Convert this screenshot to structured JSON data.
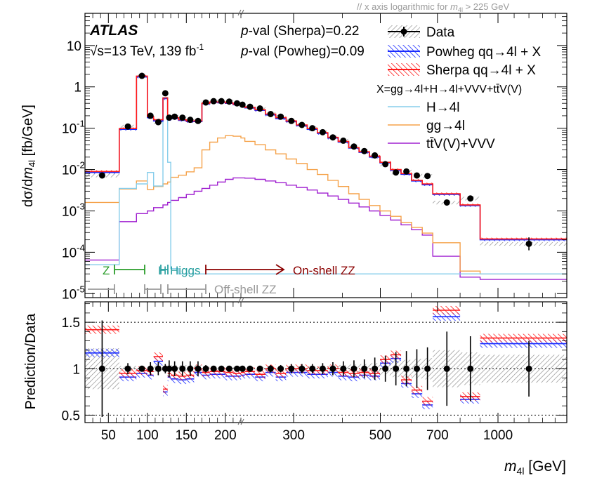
{
  "header_note": "x axis logarithmic for",
  "header_note_var": "m",
  "header_note_sub": "4l",
  "header_note_tail": "> 225 GeV",
  "atlas": {
    "label": "ATLAS",
    "energy_prefix": "√s=13 TeV, 139 fb",
    "energy_sup": "-1"
  },
  "pvals": {
    "sherpa_p": "p",
    "sherpa": "-val (Sherpa)=0.22",
    "powheg_p": "p",
    "powheg": "-val (Powheg)=0.09"
  },
  "legend": {
    "data": "Data",
    "powheg": "Powheg qq→4l + X",
    "sherpa": "Sherpa qq→4l + X",
    "x_def": "X=gg→4l+H→4l+VVV+tt̄V(V)",
    "h4l": "H→4l",
    "gg4l": "gg→4l",
    "ttv": "tt̄V(V)+VVV"
  },
  "regions": {
    "z": "Z",
    "h": "H",
    "higgs": "Higgs",
    "onshell": "On-shell ZZ",
    "offshell": "Off-shell ZZ"
  },
  "colors": {
    "data": "#000000",
    "powheg": "#1a2bff",
    "sherpa": "#ff1a1a",
    "h4l": "#87ceeb",
    "gg4l": "#f5a24a",
    "ttv": "#a020d0",
    "z_marker": "#2a9d2a",
    "h_marker": "#2aa0a0",
    "onshell": "#8b0000",
    "offshell": "#999999"
  },
  "chart_data": [
    {
      "type": "line",
      "panel": "upper",
      "xlabel_var": "m",
      "xlabel_sub": "4l",
      "xlabel_unit": "[GeV]",
      "ylabel_prefix": "dσ/d",
      "ylabel_var": "m",
      "ylabel_sub": "4l",
      "ylabel_unit": "[fb/GeV]",
      "y_scale": "log",
      "ylim": [
        8e-06,
        60
      ],
      "x_scale": "linear below 225 GeV, logarithmic above",
      "x_tick_labels": [
        "50",
        "100",
        "150",
        "200",
        "300",
        "500",
        "700",
        "1000"
      ],
      "y_tick_labels": [
        {
          "base": "10",
          "exp": "-5"
        },
        {
          "base": "10",
          "exp": "-4"
        },
        {
          "base": "10",
          "exp": "-3"
        },
        {
          "base": "10",
          "exp": "-2"
        },
        {
          "base": "10",
          "exp": "-1"
        },
        {
          "base": "1",
          "exp": ""
        },
        {
          "base": "10",
          "exp": ""
        }
      ],
      "bin_edges": [
        20,
        64,
        86,
        100,
        108,
        120,
        126,
        130,
        140,
        150,
        160,
        170,
        180,
        190,
        200,
        210,
        220,
        225,
        239,
        254,
        270,
        287,
        305,
        325,
        345,
        367,
        390,
        415,
        441,
        469,
        499,
        531,
        565,
        601,
        640,
        681,
        800,
        900,
        1500
      ],
      "series": [
        {
          "name": "Data",
          "style": "points",
          "x": [
            42,
            75,
            93,
            104,
            114,
            123,
            128,
            135,
            145,
            155,
            165,
            175,
            185,
            195,
            205,
            215,
            222,
            232,
            246,
            262,
            278,
            296,
            315,
            335,
            356,
            378,
            402,
            428,
            455,
            484,
            515,
            548,
            583,
            620,
            660,
            740,
            850,
            1200
          ],
          "y": [
            0.0072,
            0.11,
            1.85,
            0.2,
            0.14,
            0.7,
            0.18,
            0.19,
            0.18,
            0.16,
            0.15,
            0.42,
            0.45,
            0.45,
            0.44,
            0.4,
            0.37,
            0.33,
            0.3,
            0.22,
            0.19,
            0.15,
            0.12,
            0.1,
            0.08,
            0.06,
            0.05,
            0.036,
            0.028,
            0.022,
            0.0135,
            0.0085,
            0.009,
            0.0072,
            0.007,
            0.0016,
            0.002,
            0.00016
          ]
        },
        {
          "name": "Sherpa qq→4l + X",
          "style": "band",
          "y": [
            0.009,
            0.098,
            1.82,
            0.19,
            0.16,
            0.54,
            0.17,
            0.18,
            0.16,
            0.15,
            0.15,
            0.4,
            0.43,
            0.43,
            0.41,
            0.38,
            0.35,
            0.32,
            0.28,
            0.22,
            0.18,
            0.15,
            0.12,
            0.098,
            0.078,
            0.06,
            0.048,
            0.034,
            0.027,
            0.021,
            0.015,
            0.01,
            0.008,
            0.0055,
            0.0045,
            0.0026,
            0.0014,
            0.00021
          ]
        },
        {
          "name": "Powheg qq→4l + X",
          "style": "band",
          "y": [
            0.0085,
            0.094,
            1.74,
            0.18,
            0.15,
            0.52,
            0.16,
            0.17,
            0.155,
            0.145,
            0.145,
            0.39,
            0.42,
            0.42,
            0.4,
            0.37,
            0.34,
            0.31,
            0.27,
            0.21,
            0.17,
            0.145,
            0.115,
            0.094,
            0.075,
            0.058,
            0.046,
            0.033,
            0.026,
            0.02,
            0.0145,
            0.0096,
            0.0077,
            0.0053,
            0.0043,
            0.0025,
            0.00135,
            0.0002
          ]
        },
        {
          "name": "H→4l",
          "style": "step",
          "y": [
            5e-05,
            0.0035,
            0.0045,
            0.0085,
            0.004,
            0.55,
            0.015,
            4e-05,
            3e-05,
            3e-05,
            3e-05,
            3e-05,
            3e-05,
            3e-05,
            3e-05,
            3e-05,
            3e-05,
            3e-05,
            3e-05,
            3e-05,
            3e-05,
            3e-05,
            3e-05,
            3e-05,
            3e-05,
            3e-05,
            3e-05,
            3e-05,
            3e-05,
            3e-05,
            3e-05,
            3e-05,
            3e-05,
            3e-05,
            3e-05,
            3e-05,
            3e-05,
            3e-05
          ]
        },
        {
          "name": "gg→4l",
          "style": "step",
          "y": [
            0.0016,
            0.0034,
            0.0053,
            0.0033,
            0.0039,
            0.0045,
            0.005,
            0.0065,
            0.0073,
            0.0088,
            0.011,
            0.03,
            0.046,
            0.058,
            0.066,
            0.064,
            0.058,
            0.048,
            0.04,
            0.03,
            0.024,
            0.018,
            0.014,
            0.01,
            0.0076,
            0.0055,
            0.0039,
            0.0026,
            0.0019,
            0.00135,
            0.001,
            0.00074,
            0.00053,
            0.0004,
            0.00029,
            0.00017,
            3.5e-05,
            3e-05
          ]
        },
        {
          "name": "tt̄V(V)+VVV",
          "style": "step",
          "y": [
            6.5e-05,
            0.00055,
            0.00086,
            0.001,
            0.0012,
            0.0014,
            0.0016,
            0.0018,
            0.0021,
            0.0025,
            0.003,
            0.0035,
            0.0042,
            0.005,
            0.0058,
            0.0063,
            0.0063,
            0.0062,
            0.0058,
            0.0053,
            0.0048,
            0.0042,
            0.0037,
            0.0032,
            0.0027,
            0.0023,
            0.0019,
            0.00155,
            0.00125,
            0.001,
            0.00078,
            0.0006,
            0.00046,
            0.00035,
            0.00026,
            8e-05,
            2.5e-05,
            2.2e-05
          ]
        }
      ]
    },
    {
      "type": "line",
      "panel": "ratio",
      "ylabel": "Prediction/Data",
      "ylim": [
        0.42,
        1.72
      ],
      "y_tick_labels": [
        "0.5",
        "1",
        "1.5"
      ],
      "x_tick_labels": [
        "50",
        "100",
        "150",
        "200",
        "300",
        "500",
        "700",
        "1000"
      ],
      "series": [
        {
          "name": "Data",
          "style": "ratio-points",
          "x": [
            42,
            75,
            93,
            104,
            114,
            123,
            128,
            135,
            145,
            155,
            165,
            175,
            185,
            195,
            205,
            215,
            222,
            232,
            246,
            262,
            278,
            296,
            315,
            335,
            356,
            378,
            402,
            428,
            455,
            484,
            515,
            548,
            583,
            620,
            660,
            740,
            850,
            1200
          ],
          "y": [
            1,
            1,
            1,
            1,
            1,
            1,
            1,
            1,
            1,
            1,
            1,
            1,
            1,
            1,
            1,
            1,
            1,
            1,
            1,
            1,
            1,
            1,
            1,
            1,
            1,
            1,
            1,
            1,
            1,
            1,
            1,
            1,
            1,
            1,
            1,
            1,
            1,
            1
          ],
          "err": [
            0.52,
            0.06,
            0.03,
            0.07,
            0.07,
            0.05,
            0.09,
            0.08,
            0.08,
            0.08,
            0.08,
            0.04,
            0.03,
            0.03,
            0.03,
            0.03,
            0.03,
            0.03,
            0.03,
            0.04,
            0.04,
            0.05,
            0.05,
            0.05,
            0.06,
            0.07,
            0.08,
            0.09,
            0.1,
            0.12,
            0.14,
            0.18,
            0.19,
            0.21,
            0.23,
            0.4,
            0.35,
            0.3
          ]
        },
        {
          "name": "Sherpa qq→4l + X",
          "style": "band",
          "y": [
            1.42,
            0.95,
            0.98,
            0.97,
            1.13,
            0.78,
            0.95,
            0.93,
            0.92,
            0.93,
            1.0,
            0.96,
            0.97,
            0.97,
            0.96,
            0.95,
            0.96,
            0.97,
            0.94,
            1.0,
            0.95,
            1.0,
            1.0,
            0.98,
            0.98,
            1.0,
            0.96,
            0.95,
            0.96,
            0.95,
            1.1,
            1.15,
            0.88,
            0.77,
            0.65,
            1.63,
            0.7,
            1.33
          ]
        },
        {
          "name": "Powheg qq→4l + X",
          "style": "band",
          "y": [
            1.17,
            0.91,
            0.95,
            0.93,
            1.08,
            0.75,
            0.91,
            0.89,
            0.88,
            0.89,
            0.96,
            0.93,
            0.94,
            0.94,
            0.92,
            0.92,
            0.93,
            0.94,
            0.91,
            0.96,
            0.91,
            0.96,
            0.96,
            0.94,
            0.94,
            0.96,
            0.92,
            0.91,
            0.93,
            0.92,
            1.06,
            1.11,
            0.84,
            0.73,
            0.61,
            1.56,
            0.67,
            1.27
          ]
        }
      ]
    }
  ]
}
